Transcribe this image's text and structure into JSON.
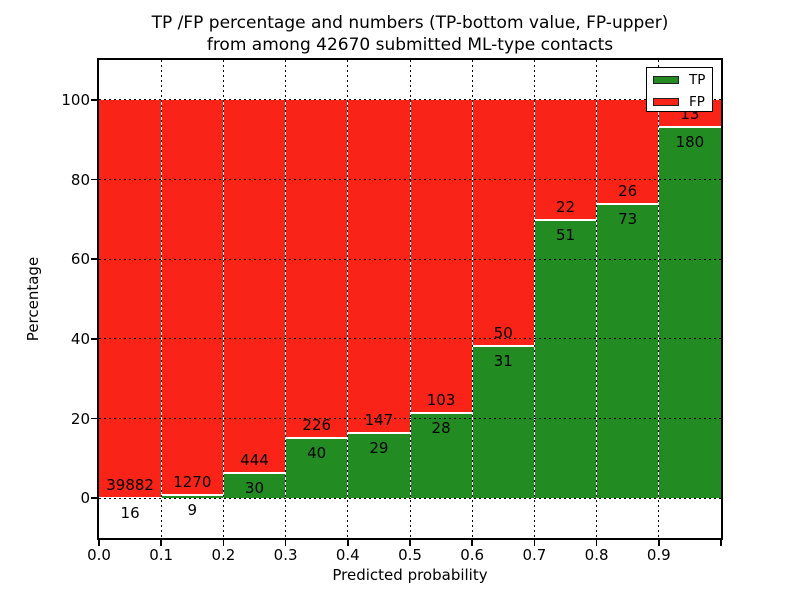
{
  "title": {
    "line1": "TP /FP percentage and numbers (TP-bottom value, FP-upper)",
    "line2": "from among 42670 submitted ML-type contacts"
  },
  "chart_data": {
    "type": "bar",
    "stacked": true,
    "normalized": "percent",
    "title": "TP /FP percentage and numbers (TP-bottom value, FP-upper) from among 42670 submitted ML-type contacts",
    "xlabel": "Predicted probability",
    "ylabel": "Percentage",
    "total_contacts": 42670,
    "bin_edges": [
      0.0,
      0.1,
      0.2,
      0.3,
      0.4,
      0.5,
      0.6,
      0.7,
      0.8,
      0.9,
      1.0
    ],
    "series": [
      {
        "name": "TP",
        "color": "#228b22",
        "counts": [
          16,
          9,
          30,
          40,
          29,
          28,
          31,
          51,
          73,
          180
        ]
      },
      {
        "name": "FP",
        "color": "#fa2318",
        "counts": [
          39882,
          1270,
          444,
          226,
          147,
          103,
          50,
          22,
          26,
          13
        ]
      }
    ],
    "tp_percent": [
      0.04,
      0.7,
      6.33,
      15.04,
      16.48,
      21.37,
      38.27,
      69.86,
      73.74,
      93.26
    ],
    "xticks": [
      "0.0",
      "0.1",
      "0.2",
      "0.3",
      "0.4",
      "0.5",
      "0.6",
      "0.7",
      "0.8",
      "0.9"
    ],
    "yticks": [
      "0",
      "20",
      "40",
      "60",
      "80",
      "100"
    ],
    "xlim": [
      0,
      1
    ],
    "ylim": [
      -10,
      110
    ],
    "grid": true,
    "legend": {
      "position": "upper right",
      "entries": [
        "TP",
        "FP"
      ]
    }
  }
}
